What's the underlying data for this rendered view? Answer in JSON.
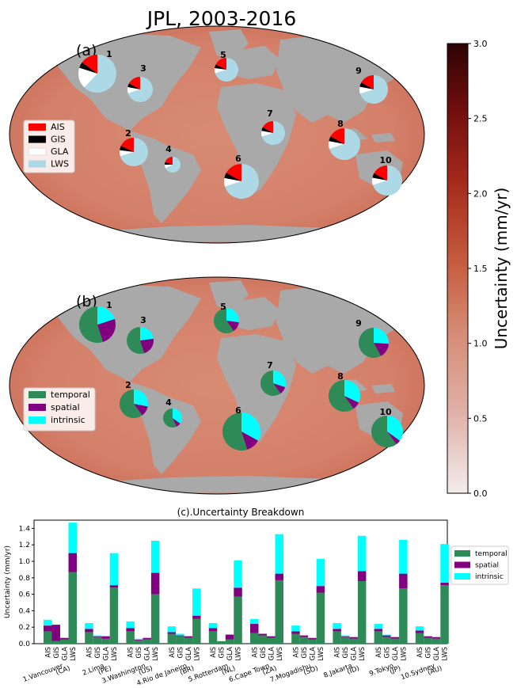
{
  "title": "JPL, 2003-2016",
  "panel_labels": {
    "a": "(a)",
    "b": "(b)"
  },
  "colorbar": {
    "label": "Uncertainty (mm/yr)",
    "ticks": [
      "0.0",
      "0.5",
      "1.0",
      "1.5",
      "2.0",
      "2.5",
      "3.0"
    ],
    "range": [
      0,
      3
    ]
  },
  "colors": {
    "AIS": "#ff0000",
    "GIS": "#000000",
    "GLA": "#ffffff",
    "LWS": "#add8e6",
    "temporal": "#2e8b57",
    "spatial": "#800080",
    "intrinsic": "#00ffff",
    "land": "#a9a9a9",
    "ocean": "#d5816a"
  },
  "legend_a": [
    "AIS",
    "GIS",
    "GLA",
    "LWS"
  ],
  "legend_b": [
    "temporal",
    "spatial",
    "intrinsic"
  ],
  "sites": [
    {
      "id": "1",
      "name": "1.Vancouver\n(CA)"
    },
    {
      "id": "2",
      "name": "2.Lima\n(PE)"
    },
    {
      "id": "3",
      "name": "3.Washington\n(US)"
    },
    {
      "id": "4",
      "name": "4.Rio de Janeiro\n(BR)"
    },
    {
      "id": "5",
      "name": "5.Rotterdam\n(NL)"
    },
    {
      "id": "6",
      "name": "6.Cape Town\n(ZA)"
    },
    {
      "id": "7",
      "name": "7.Mogadishu\n(SO)"
    },
    {
      "id": "8",
      "name": "8.Jakarta\n(ID)"
    },
    {
      "id": "9",
      "name": "9.Tokyo\n(JP)"
    },
    {
      "id": "10",
      "name": "10.Sydney\n(AU)"
    }
  ],
  "chart_data": {
    "type": "bar",
    "title": "(c).Uncertainty Breakdown",
    "ylabel": "Uncertainty (mm/yr)",
    "ylim": [
      0,
      1.5
    ],
    "yticks": [
      "0.0",
      "0.2",
      "0.4",
      "0.6",
      "0.8",
      "1.0",
      "1.2",
      "1.4"
    ],
    "components": [
      "AIS",
      "GIS",
      "GLA",
      "LWS"
    ],
    "series_names": [
      "temporal",
      "spatial",
      "intrinsic"
    ],
    "stacked": [
      [
        [
          0.15,
          0.07,
          0.07
        ],
        [
          0.03,
          0.2,
          0.0
        ],
        [
          0.05,
          0.02,
          0.0
        ],
        [
          0.87,
          0.23,
          0.37
        ]
      ],
      [
        [
          0.14,
          0.04,
          0.07
        ],
        [
          0.08,
          0.01,
          0.01
        ],
        [
          0.06,
          0.03,
          0.0
        ],
        [
          0.68,
          0.03,
          0.39
        ]
      ],
      [
        [
          0.15,
          0.04,
          0.08
        ],
        [
          0.04,
          0.01,
          0.01
        ],
        [
          0.05,
          0.02,
          0.0
        ],
        [
          0.6,
          0.26,
          0.39
        ]
      ],
      [
        [
          0.12,
          0.02,
          0.07
        ],
        [
          0.09,
          0.01,
          0.02
        ],
        [
          0.07,
          0.02,
          0.0
        ],
        [
          0.3,
          0.04,
          0.33
        ]
      ],
      [
        [
          0.15,
          0.04,
          0.06
        ],
        [
          0.03,
          0.0,
          0.0
        ],
        [
          0.05,
          0.06,
          0.0
        ],
        [
          0.57,
          0.11,
          0.33
        ]
      ],
      [
        [
          0.13,
          0.11,
          0.06
        ],
        [
          0.1,
          0.02,
          0.0
        ],
        [
          0.07,
          0.02,
          0.0
        ],
        [
          0.77,
          0.08,
          0.48
        ]
      ],
      [
        [
          0.12,
          0.03,
          0.07
        ],
        [
          0.08,
          0.02,
          0.0
        ],
        [
          0.05,
          0.02,
          0.0
        ],
        [
          0.62,
          0.08,
          0.33
        ]
      ],
      [
        [
          0.15,
          0.03,
          0.07
        ],
        [
          0.08,
          0.01,
          0.01
        ],
        [
          0.06,
          0.02,
          0.0
        ],
        [
          0.76,
          0.12,
          0.43
        ]
      ],
      [
        [
          0.15,
          0.03,
          0.06
        ],
        [
          0.08,
          0.02,
          0.01
        ],
        [
          0.06,
          0.02,
          0.0
        ],
        [
          0.67,
          0.18,
          0.41
        ]
      ],
      [
        [
          0.13,
          0.03,
          0.05
        ],
        [
          0.07,
          0.02,
          0.0
        ],
        [
          0.06,
          0.02,
          0.0
        ],
        [
          0.71,
          0.03,
          0.47
        ]
      ]
    ],
    "pie_a": [
      [
        0.15,
        0.05,
        0.18,
        0.62
      ],
      [
        0.18,
        0.05,
        0.07,
        0.7
      ],
      [
        0.17,
        0.05,
        0.08,
        0.7
      ],
      [
        0.2,
        0.05,
        0.08,
        0.67
      ],
      [
        0.18,
        0.05,
        0.07,
        0.7
      ],
      [
        0.17,
        0.05,
        0.08,
        0.7
      ],
      [
        0.17,
        0.05,
        0.08,
        0.7
      ],
      [
        0.17,
        0.05,
        0.08,
        0.7
      ],
      [
        0.17,
        0.05,
        0.08,
        0.7
      ],
      [
        0.17,
        0.05,
        0.08,
        0.7
      ]
    ],
    "pie_b": [
      [
        0.55,
        0.25,
        0.2
      ],
      [
        0.6,
        0.12,
        0.28
      ],
      [
        0.55,
        0.22,
        0.23
      ],
      [
        0.57,
        0.08,
        0.35
      ],
      [
        0.6,
        0.13,
        0.27
      ],
      [
        0.55,
        0.12,
        0.33
      ],
      [
        0.6,
        0.1,
        0.3
      ],
      [
        0.6,
        0.08,
        0.32
      ],
      [
        0.58,
        0.16,
        0.26
      ],
      [
        0.6,
        0.05,
        0.35
      ]
    ]
  }
}
